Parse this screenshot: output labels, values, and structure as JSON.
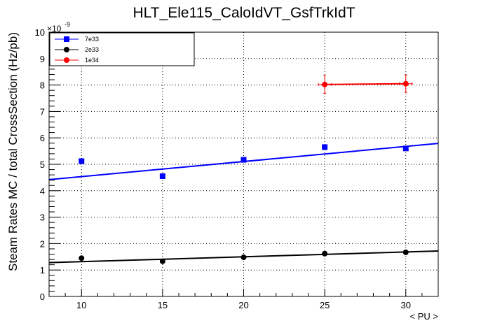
{
  "chart_data": {
    "type": "scatter",
    "title": "HLT_Ele115_CaloIdVT_GsfTrkIdT",
    "xlabel": "< PU >",
    "ylabel": "Steam Rates MC / total CrossSection (Hz/pb)",
    "y_exponent_base": "×10",
    "y_exponent_power": "-9",
    "xlim": [
      8,
      32
    ],
    "ylim": [
      0,
      10
    ],
    "x_ticks": [
      10,
      15,
      20,
      25,
      30
    ],
    "y_ticks": [
      0,
      1,
      2,
      3,
      4,
      5,
      6,
      7,
      8,
      9,
      10
    ],
    "grid": true,
    "legend_position": "top-left",
    "series": [
      {
        "name": "7e33",
        "color": "#0000ff",
        "marker": "square",
        "x": [
          10,
          15,
          20,
          25,
          30
        ],
        "y": [
          5.12,
          4.55,
          5.17,
          5.65,
          5.6
        ],
        "fit": {
          "x": [
            8,
            32
          ],
          "y": [
            4.42,
            5.79
          ]
        }
      },
      {
        "name": "2e33",
        "color": "#000000",
        "marker": "circle",
        "x": [
          10,
          15,
          20,
          25,
          30
        ],
        "y": [
          1.45,
          1.33,
          1.48,
          1.62,
          1.67
        ],
        "fit": {
          "x": [
            8,
            32
          ],
          "y": [
            1.28,
            1.72
          ]
        }
      },
      {
        "name": "1e34",
        "color": "#ff0000",
        "marker": "circle",
        "x": [
          25,
          30
        ],
        "y": [
          8.02,
          8.05
        ],
        "y_err": [
          0.33,
          0.33
        ],
        "x_err": [
          0.4,
          0.4
        ],
        "connect": true
      }
    ]
  }
}
